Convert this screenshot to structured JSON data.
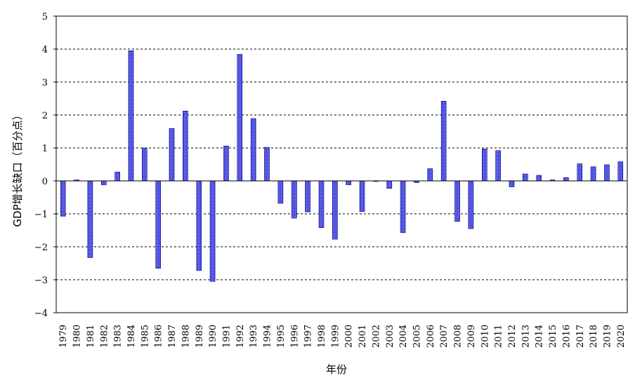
{
  "chart_data": {
    "type": "bar",
    "xlabel": "年份",
    "ylabel": "GDP增长缺口（百分点）",
    "ylim": [
      -4,
      5
    ],
    "yticks": [
      -4,
      -3,
      -2,
      -1,
      0,
      1,
      2,
      3,
      4,
      5
    ],
    "grid": true,
    "colors": {
      "bar": "#3a3ad8",
      "bar_edge": "#000080",
      "grid": "#000000",
      "axis": "#000000"
    },
    "categories": [
      "1979",
      "1980",
      "1981",
      "1982",
      "1983",
      "1984",
      "1985",
      "1986",
      "1987",
      "1988",
      "1989",
      "1990",
      "1991",
      "1992",
      "1993",
      "1994",
      "1995",
      "1996",
      "1997",
      "1998",
      "1999",
      "2000",
      "2001",
      "2002",
      "2003",
      "2004",
      "2005",
      "2006",
      "2007",
      "2008",
      "2009",
      "2010",
      "2011",
      "2012",
      "2013",
      "2014",
      "2015",
      "2016",
      "2017",
      "2018",
      "2019",
      "2020"
    ],
    "values": [
      -1.07,
      0.03,
      -2.33,
      -0.12,
      0.27,
      3.95,
      1.0,
      -2.65,
      1.59,
      2.12,
      -2.72,
      -3.05,
      1.06,
      3.84,
      1.89,
      1.02,
      -0.68,
      -1.13,
      -0.94,
      -1.42,
      -1.77,
      -0.12,
      -0.93,
      0.0,
      -0.23,
      -1.57,
      -0.05,
      0.37,
      2.42,
      -1.23,
      -1.45,
      0.97,
      0.92,
      -0.18,
      0.21,
      0.17,
      0.03,
      0.1,
      0.52,
      0.43,
      0.49,
      0.58
    ]
  }
}
